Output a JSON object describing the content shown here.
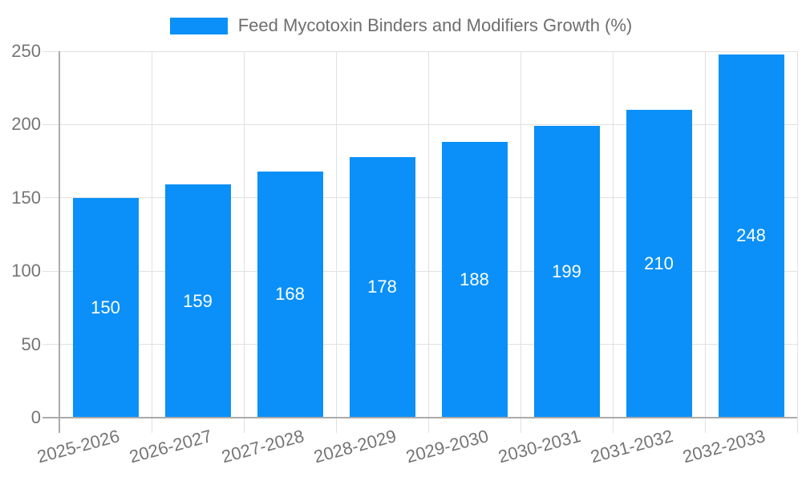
{
  "chart_data": {
    "type": "bar",
    "title": "Feed Mycotoxin Binders and Modifiers Growth (%)",
    "legend": [
      {
        "label": "Feed Mycotoxin Binders and Modifiers Growth (%)",
        "color": "#0A90F8"
      }
    ],
    "legend_position": "top-center",
    "categories": [
      "2025-2026",
      "2026-2027",
      "2027-2028",
      "2028-2029",
      "2029-2030",
      "2030-2031",
      "2031-2032",
      "2032-2033"
    ],
    "series": [
      {
        "name": "Feed Mycotoxin Binders and Modifiers Growth (%)",
        "values": [
          150,
          159,
          168,
          178,
          188,
          199,
          210,
          248
        ]
      }
    ],
    "xlabel": "",
    "ylabel": "",
    "ylim": [
      0,
      250
    ],
    "yticks": [
      0,
      50,
      100,
      150,
      200,
      250
    ],
    "grid": true,
    "x_label_rotation_deg": -15,
    "value_labels_position": "inside-center"
  },
  "colors": {
    "bar": "#0A90F8",
    "grid": "#e1e1e1",
    "axis": "#ababab",
    "tick_text": "#757575",
    "legend_text": "#6e6e6e",
    "value_text": "#ffffff",
    "background": "#ffffff"
  }
}
